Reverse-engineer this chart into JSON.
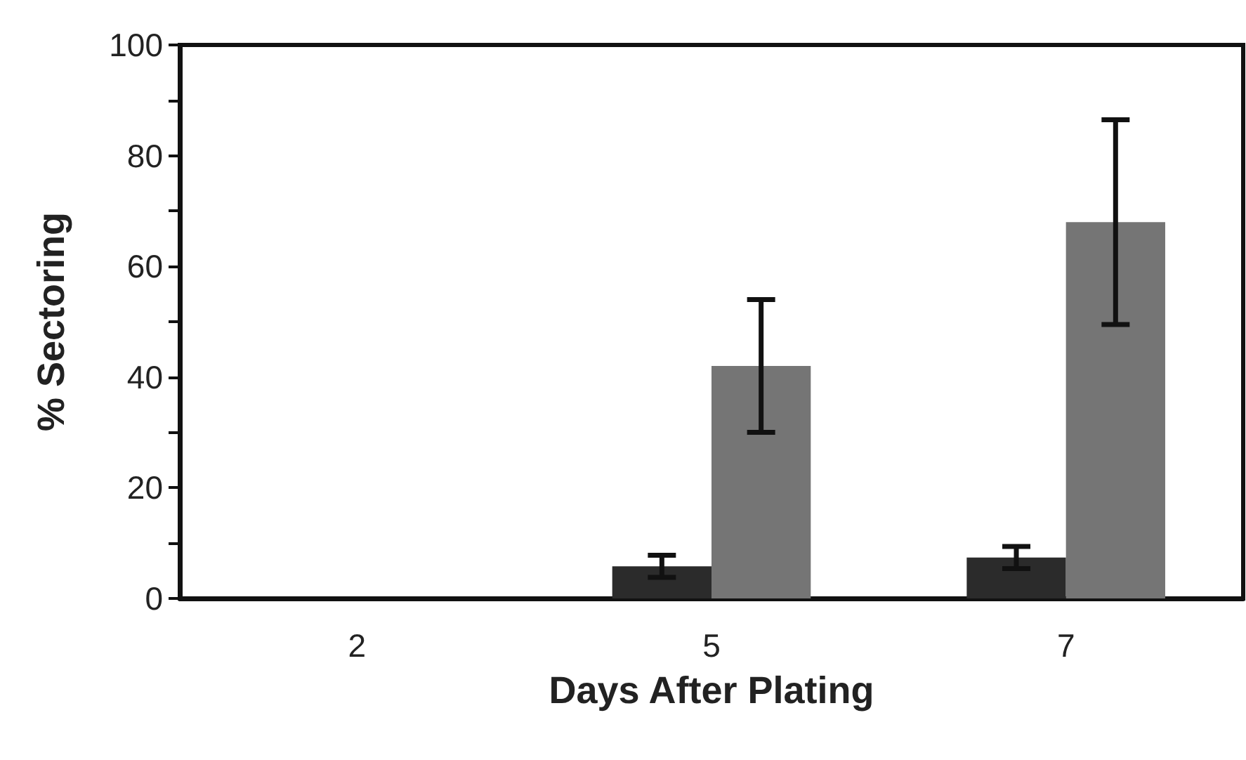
{
  "chart_data": {
    "type": "bar",
    "xlabel": "Days After Plating",
    "ylabel": "% Sectoring",
    "categories": [
      "2",
      "5",
      "7"
    ],
    "series": [
      {
        "color": "#2b2b2b",
        "values": [
          0,
          5.8,
          7.4
        ],
        "errors": [
          null,
          2,
          2
        ]
      },
      {
        "color": "#757575",
        "values": [
          0,
          42,
          68
        ],
        "errors": [
          null,
          12,
          18.5
        ]
      }
    ],
    "ylim": [
      0,
      100
    ],
    "yticks": [
      0,
      {
        "value": 10,
        "label": null
      },
      20,
      {
        "value": 30,
        "label": null
      },
      40,
      {
        "value": 50,
        "label": null
      },
      60,
      {
        "value": 70,
        "label": null
      },
      80,
      {
        "value": 90,
        "label": null
      },
      100
    ],
    "grid": false
  }
}
